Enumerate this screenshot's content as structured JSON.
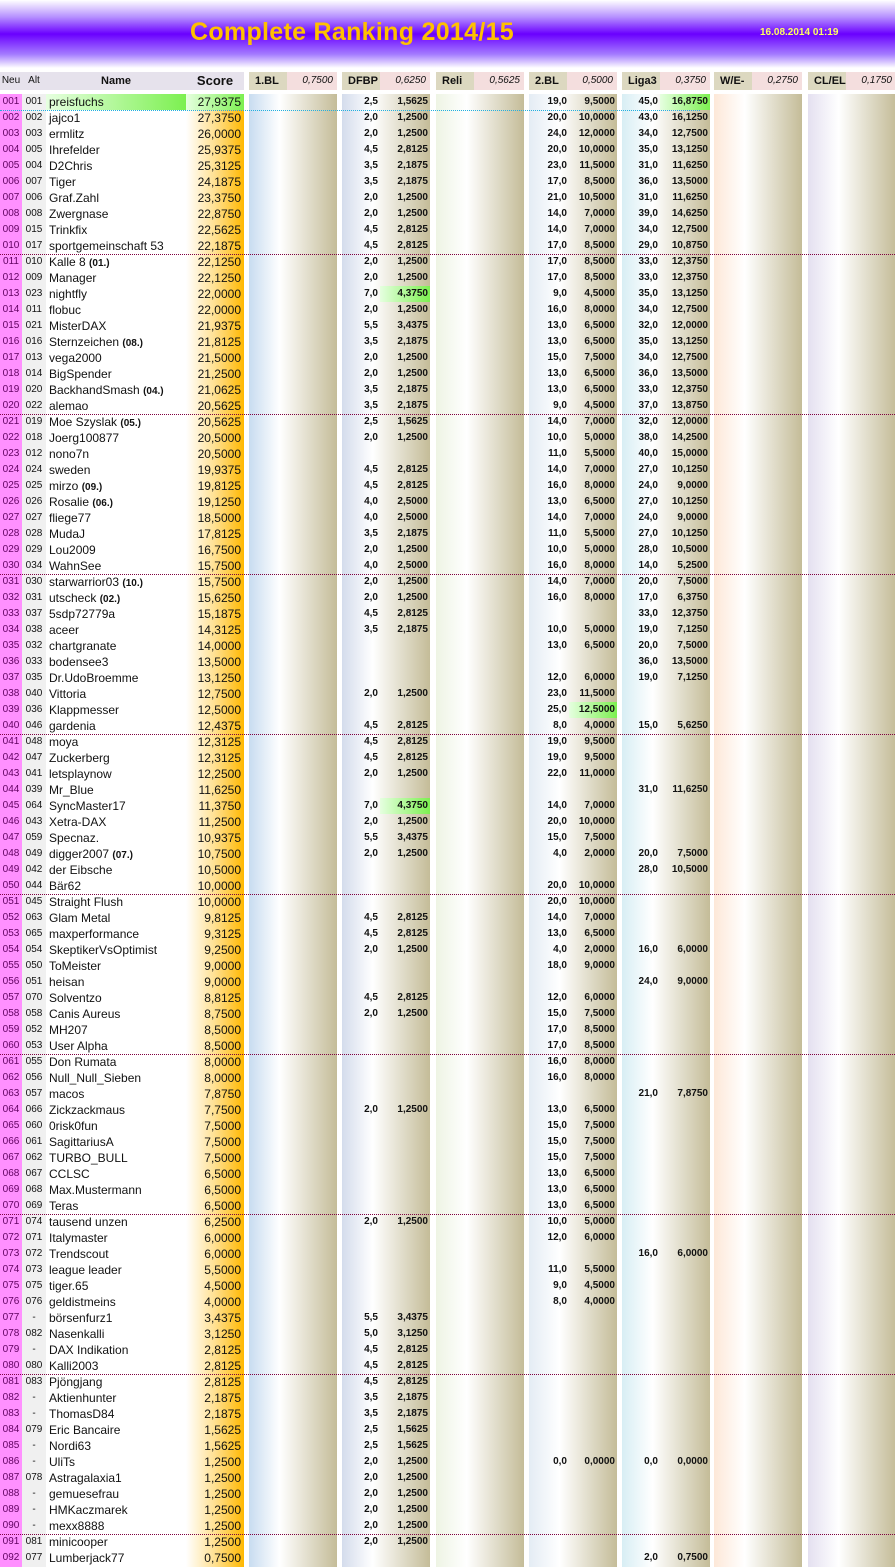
{
  "header": {
    "title": "Complete Ranking 2014/15",
    "date": "16.08.2014 01:19"
  },
  "columns": {
    "neu": "Neu",
    "alt": "Alt",
    "name": "Name",
    "score": "Score",
    "groups": [
      {
        "label": "1.BL",
        "factor": "0,7500"
      },
      {
        "label": "DFBP",
        "factor": "0,6250"
      },
      {
        "label": "Reli",
        "factor": "0,5625"
      },
      {
        "label": "2.BL",
        "factor": "0,5000"
      },
      {
        "label": "Liga3",
        "factor": "0,3750"
      },
      {
        "label": "W/E-Q",
        "factor": "0,2750"
      },
      {
        "label": "CL/EL",
        "factor": "0,1750"
      }
    ]
  },
  "colors": {
    "highlight": "#7cf050",
    "score": "#ffc000",
    "neu": "#ff88ff",
    "banner": "#6a00ff",
    "title": "#ffc000"
  },
  "row_fields": [
    "neu",
    "alt",
    "name",
    "tag",
    "score",
    "dfbp_pts",
    "dfbp_val",
    "bl2_pts",
    "bl2_val",
    "liga3_pts",
    "liga3_val",
    "extra"
  ],
  "rows": [
    [
      "001",
      "001",
      "preisfuchs",
      "",
      "27,9375",
      "2,5",
      "1,5625",
      "19,0",
      "9,5000",
      "45,0",
      "16,8750",
      {
        "hl": [
          "name",
          "score",
          "liga3_val"
        ]
      }
    ],
    [
      "002",
      "002",
      "jajco1",
      "",
      "27,3750",
      "2,0",
      "1,2500",
      "20,0",
      "10,0000",
      "43,0",
      "16,1250"
    ],
    [
      "003",
      "003",
      "ermlitz",
      "",
      "26,0000",
      "2,0",
      "1,2500",
      "24,0",
      "12,0000",
      "34,0",
      "12,7500"
    ],
    [
      "004",
      "005",
      "Ihrefelder",
      "",
      "25,9375",
      "4,5",
      "2,8125",
      "20,0",
      "10,0000",
      "35,0",
      "13,1250"
    ],
    [
      "005",
      "004",
      "D2Chris",
      "",
      "25,3125",
      "3,5",
      "2,1875",
      "23,0",
      "11,5000",
      "31,0",
      "11,6250"
    ],
    [
      "006",
      "007",
      "Tiger",
      "",
      "24,1875",
      "3,5",
      "2,1875",
      "17,0",
      "8,5000",
      "36,0",
      "13,5000"
    ],
    [
      "007",
      "006",
      "Graf.Zahl",
      "",
      "23,3750",
      "2,0",
      "1,2500",
      "21,0",
      "10,5000",
      "31,0",
      "11,6250"
    ],
    [
      "008",
      "008",
      "Zwergnase",
      "",
      "22,8750",
      "2,0",
      "1,2500",
      "14,0",
      "7,0000",
      "39,0",
      "14,6250"
    ],
    [
      "009",
      "015",
      "Trinkfix",
      "",
      "22,5625",
      "4,5",
      "2,8125",
      "14,0",
      "7,0000",
      "34,0",
      "12,7500"
    ],
    [
      "010",
      "017",
      "sportgemeinschaft 53",
      "",
      "22,1875",
      "4,5",
      "2,8125",
      "17,0",
      "8,5000",
      "29,0",
      "10,8750"
    ],
    [
      "011",
      "010",
      "Kalle 8",
      "(01.)",
      "22,1250",
      "2,0",
      "1,2500",
      "17,0",
      "8,5000",
      "33,0",
      "12,3750",
      {
        "star": "green-star-icon"
      }
    ],
    [
      "012",
      "009",
      "Manager",
      "",
      "22,1250",
      "2,0",
      "1,2500",
      "17,0",
      "8,5000",
      "33,0",
      "12,3750"
    ],
    [
      "013",
      "023",
      "nightfly",
      "",
      "22,0000",
      "7,0",
      "4,3750",
      "9,0",
      "4,5000",
      "35,0",
      "13,1250",
      {
        "hl": [
          "dfbp_val"
        ]
      }
    ],
    [
      "014",
      "011",
      "flobuc",
      "",
      "22,0000",
      "2,0",
      "1,2500",
      "16,0",
      "8,0000",
      "34,0",
      "12,7500"
    ],
    [
      "015",
      "021",
      "MisterDAX",
      "",
      "21,9375",
      "5,5",
      "3,4375",
      "13,0",
      "6,5000",
      "32,0",
      "12,0000"
    ],
    [
      "016",
      "016",
      "Sternzeichen",
      "(08.)",
      "21,8125",
      "3,5",
      "2,1875",
      "13,0",
      "6,5000",
      "35,0",
      "13,1250"
    ],
    [
      "017",
      "013",
      "vega2000",
      "",
      "21,5000",
      "2,0",
      "1,2500",
      "15,0",
      "7,5000",
      "34,0",
      "12,7500"
    ],
    [
      "018",
      "014",
      "BigSpender",
      "",
      "21,2500",
      "2,0",
      "1,2500",
      "13,0",
      "6,5000",
      "36,0",
      "13,5000"
    ],
    [
      "019",
      "020",
      "BackhandSmash",
      "(04.)",
      "21,0625",
      "3,5",
      "2,1875",
      "13,0",
      "6,5000",
      "33,0",
      "12,3750"
    ],
    [
      "020",
      "022",
      "alemao",
      "",
      "20,5625",
      "3,5",
      "2,1875",
      "9,0",
      "4,5000",
      "37,0",
      "13,8750"
    ],
    [
      "021",
      "019",
      "Moe Szyslak",
      "(05.)",
      "20,5625",
      "2,5",
      "1,5625",
      "14,0",
      "7,0000",
      "32,0",
      "12,0000"
    ],
    [
      "022",
      "018",
      "Joerg100877",
      "",
      "20,5000",
      "2,0",
      "1,2500",
      "10,0",
      "5,0000",
      "38,0",
      "14,2500"
    ],
    [
      "023",
      "012",
      "nono7n",
      "",
      "20,5000",
      "",
      "",
      "11,0",
      "5,5000",
      "40,0",
      "15,0000"
    ],
    [
      "024",
      "024",
      "sweden",
      "",
      "19,9375",
      "4,5",
      "2,8125",
      "14,0",
      "7,0000",
      "27,0",
      "10,1250"
    ],
    [
      "025",
      "025",
      "mirzo",
      "(09.)",
      "19,8125",
      "4,5",
      "2,8125",
      "16,0",
      "8,0000",
      "24,0",
      "9,0000"
    ],
    [
      "026",
      "026",
      "Rosalie",
      "(06.)",
      "19,1250",
      "4,0",
      "2,5000",
      "13,0",
      "6,5000",
      "27,0",
      "10,1250"
    ],
    [
      "027",
      "027",
      "fliege77",
      "",
      "18,5000",
      "4,0",
      "2,5000",
      "14,0",
      "7,0000",
      "24,0",
      "9,0000"
    ],
    [
      "028",
      "028",
      "MudaJ",
      "",
      "17,8125",
      "3,5",
      "2,1875",
      "11,0",
      "5,5000",
      "27,0",
      "10,1250"
    ],
    [
      "029",
      "029",
      "Lou2009",
      "",
      "16,7500",
      "2,0",
      "1,2500",
      "10,0",
      "5,0000",
      "28,0",
      "10,5000"
    ],
    [
      "030",
      "034",
      "WahnSee",
      "",
      "15,7500",
      "4,0",
      "2,5000",
      "16,0",
      "8,0000",
      "14,0",
      "5,2500"
    ],
    [
      "031",
      "030",
      "starwarrior03",
      "(10.)",
      "15,7500",
      "2,0",
      "1,2500",
      "14,0",
      "7,0000",
      "20,0",
      "7,5000"
    ],
    [
      "032",
      "031",
      "utscheck",
      "(02.)",
      "15,6250",
      "2,0",
      "1,2500",
      "16,0",
      "8,0000",
      "17,0",
      "6,3750",
      {
        "star": "black-star-icon"
      }
    ],
    [
      "033",
      "037",
      "5sdp72779a",
      "",
      "15,1875",
      "4,5",
      "2,8125",
      "",
      "",
      "33,0",
      "12,3750"
    ],
    [
      "034",
      "038",
      "aceer",
      "",
      "14,3125",
      "3,5",
      "2,1875",
      "10,0",
      "5,0000",
      "19,0",
      "7,1250"
    ],
    [
      "035",
      "032",
      "chartgranate",
      "",
      "14,0000",
      "",
      "",
      "13,0",
      "6,5000",
      "20,0",
      "7,5000"
    ],
    [
      "036",
      "033",
      "bodensee3",
      "",
      "13,5000",
      "",
      "",
      "",
      "",
      "36,0",
      "13,5000"
    ],
    [
      "037",
      "035",
      "Dr.UdoBroemme",
      "",
      "13,1250",
      "",
      "",
      "12,0",
      "6,0000",
      "19,0",
      "7,1250"
    ],
    [
      "038",
      "040",
      "Vittoria",
      "",
      "12,7500",
      "2,0",
      "1,2500",
      "23,0",
      "11,5000",
      "",
      ""
    ],
    [
      "039",
      "036",
      "Klappmesser",
      "",
      "12,5000",
      "",
      "",
      "25,0",
      "12,5000",
      "",
      "",
      {
        "hl": [
          "bl2_val"
        ]
      }
    ],
    [
      "040",
      "046",
      "gardenia",
      "",
      "12,4375",
      "4,5",
      "2,8125",
      "8,0",
      "4,0000",
      "15,0",
      "5,6250"
    ],
    [
      "041",
      "048",
      "moya",
      "",
      "12,3125",
      "4,5",
      "2,8125",
      "19,0",
      "9,5000",
      "",
      ""
    ],
    [
      "042",
      "047",
      "Zuckerberg",
      "",
      "12,3125",
      "4,5",
      "2,8125",
      "19,0",
      "9,5000",
      "",
      ""
    ],
    [
      "043",
      "041",
      "letsplaynow",
      "",
      "12,2500",
      "2,0",
      "1,2500",
      "22,0",
      "11,0000",
      "",
      ""
    ],
    [
      "044",
      "039",
      "Mr_Blue",
      "",
      "11,6250",
      "",
      "",
      "",
      "",
      "31,0",
      "11,6250"
    ],
    [
      "045",
      "064",
      "SyncMaster17",
      "",
      "11,3750",
      "7,0",
      "4,3750",
      "14,0",
      "7,0000",
      "",
      "",
      {
        "hl": [
          "dfbp_val"
        ]
      }
    ],
    [
      "046",
      "043",
      "Xetra-DAX",
      "",
      "11,2500",
      "2,0",
      "1,2500",
      "20,0",
      "10,0000",
      "",
      ""
    ],
    [
      "047",
      "059",
      "Specnaz.",
      "",
      "10,9375",
      "5,5",
      "3,4375",
      "15,0",
      "7,5000",
      "",
      ""
    ],
    [
      "048",
      "049",
      "digger2007",
      "(07.)",
      "10,7500",
      "2,0",
      "1,2500",
      "4,0",
      "2,0000",
      "20,0",
      "7,5000"
    ],
    [
      "049",
      "042",
      "der Eibsche",
      "",
      "10,5000",
      "",
      "",
      "",
      "",
      "28,0",
      "10,5000"
    ],
    [
      "050",
      "044",
      "Bär62",
      "",
      "10,0000",
      "",
      "",
      "20,0",
      "10,0000",
      "",
      ""
    ],
    [
      "051",
      "045",
      "Straight Flush",
      "",
      "10,0000",
      "",
      "",
      "20,0",
      "10,0000",
      "",
      ""
    ],
    [
      "052",
      "063",
      "Glam Metal",
      "",
      "9,8125",
      "4,5",
      "2,8125",
      "14,0",
      "7,0000",
      "",
      ""
    ],
    [
      "053",
      "065",
      "maxperformance",
      "",
      "9,3125",
      "4,5",
      "2,8125",
      "13,0",
      "6,5000",
      "",
      ""
    ],
    [
      "054",
      "054",
      "SkeptikerVsOptimist",
      "",
      "9,2500",
      "2,0",
      "1,2500",
      "4,0",
      "2,0000",
      "16,0",
      "6,0000"
    ],
    [
      "055",
      "050",
      "ToMeister",
      "",
      "9,0000",
      "",
      "",
      "18,0",
      "9,0000",
      "",
      ""
    ],
    [
      "056",
      "051",
      "heisan",
      "",
      "9,0000",
      "",
      "",
      "",
      "",
      "24,0",
      "9,0000"
    ],
    [
      "057",
      "070",
      "Solventzo",
      "",
      "8,8125",
      "4,5",
      "2,8125",
      "12,0",
      "6,0000",
      "",
      ""
    ],
    [
      "058",
      "058",
      "Canis Aureus",
      "",
      "8,7500",
      "2,0",
      "1,2500",
      "15,0",
      "7,5000",
      "",
      ""
    ],
    [
      "059",
      "052",
      "MH207",
      "",
      "8,5000",
      "",
      "",
      "17,0",
      "8,5000",
      "",
      ""
    ],
    [
      "060",
      "053",
      "User Alpha",
      "",
      "8,5000",
      "",
      "",
      "17,0",
      "8,5000",
      "",
      ""
    ],
    [
      "061",
      "055",
      "Don Rumata",
      "",
      "8,0000",
      "",
      "",
      "16,0",
      "8,0000",
      "",
      ""
    ],
    [
      "062",
      "056",
      "Null_Null_Sieben",
      "",
      "8,0000",
      "",
      "",
      "16,0",
      "8,0000",
      "",
      ""
    ],
    [
      "063",
      "057",
      "macos",
      "",
      "7,8750",
      "",
      "",
      "",
      "",
      "21,0",
      "7,8750"
    ],
    [
      "064",
      "066",
      "Zickzackmaus",
      "",
      "7,7500",
      "2,0",
      "1,2500",
      "13,0",
      "6,5000",
      "",
      ""
    ],
    [
      "065",
      "060",
      "0risk0fun",
      "",
      "7,5000",
      "",
      "",
      "15,0",
      "7,5000",
      "",
      ""
    ],
    [
      "066",
      "061",
      "SagittariusA",
      "",
      "7,5000",
      "",
      "",
      "15,0",
      "7,5000",
      "",
      ""
    ],
    [
      "067",
      "062",
      "TURBO_BULL",
      "",
      "7,5000",
      "",
      "",
      "15,0",
      "7,5000",
      "",
      ""
    ],
    [
      "068",
      "067",
      "CCLSC",
      "",
      "6,5000",
      "",
      "",
      "13,0",
      "6,5000",
      "",
      ""
    ],
    [
      "069",
      "068",
      "Max.Mustermann",
      "",
      "6,5000",
      "",
      "",
      "13,0",
      "6,5000",
      "",
      ""
    ],
    [
      "070",
      "069",
      "Teras",
      "",
      "6,5000",
      "",
      "",
      "13,0",
      "6,5000",
      "",
      ""
    ],
    [
      "071",
      "074",
      "tausend unzen",
      "",
      "6,2500",
      "2,0",
      "1,2500",
      "10,0",
      "5,0000",
      "",
      ""
    ],
    [
      "072",
      "071",
      "Italymaster",
      "",
      "6,0000",
      "",
      "",
      "12,0",
      "6,0000",
      "",
      ""
    ],
    [
      "073",
      "072",
      "Trendscout",
      "",
      "6,0000",
      "",
      "",
      "",
      "",
      "16,0",
      "6,0000"
    ],
    [
      "074",
      "073",
      "league leader",
      "",
      "5,5000",
      "",
      "",
      "11,0",
      "5,5000",
      "",
      ""
    ],
    [
      "075",
      "075",
      "tiger.65",
      "",
      "4,5000",
      "",
      "",
      "9,0",
      "4,5000",
      "",
      ""
    ],
    [
      "076",
      "076",
      "geldistmeins",
      "",
      "4,0000",
      "",
      "",
      "8,0",
      "4,0000",
      "",
      ""
    ],
    [
      "077",
      "-",
      "börsenfurz1",
      "",
      "3,4375",
      "5,5",
      "3,4375",
      "",
      "",
      "",
      ""
    ],
    [
      "078",
      "082",
      "Nasenkalli",
      "",
      "3,1250",
      "5,0",
      "3,1250",
      "",
      "",
      "",
      ""
    ],
    [
      "079",
      "-",
      "DAX Indikation",
      "",
      "2,8125",
      "4,5",
      "2,8125",
      "",
      "",
      "",
      ""
    ],
    [
      "080",
      "080",
      "Kalli2003",
      "",
      "2,8125",
      "4,5",
      "2,8125",
      "",
      "",
      "",
      ""
    ],
    [
      "081",
      "083",
      "Pjöngjang",
      "",
      "2,8125",
      "4,5",
      "2,8125",
      "",
      "",
      "",
      ""
    ],
    [
      "082",
      "-",
      "Aktienhunter",
      "",
      "2,1875",
      "3,5",
      "2,1875",
      "",
      "",
      "",
      ""
    ],
    [
      "083",
      "-",
      "ThomasD84",
      "",
      "2,1875",
      "3,5",
      "2,1875",
      "",
      "",
      "",
      ""
    ],
    [
      "084",
      "079",
      "Eric Bancaire",
      "",
      "1,5625",
      "2,5",
      "1,5625",
      "",
      "",
      "",
      ""
    ],
    [
      "085",
      "-",
      "Nordi63",
      "",
      "1,5625",
      "2,5",
      "1,5625",
      "",
      "",
      "",
      ""
    ],
    [
      "086",
      "-",
      "UliTs",
      "",
      "1,2500",
      "2,0",
      "1,2500",
      "0,0",
      "0,0000",
      "0,0",
      "0,0000"
    ],
    [
      "087",
      "078",
      "Astragalaxia1",
      "",
      "1,2500",
      "2,0",
      "1,2500",
      "",
      "",
      "",
      ""
    ],
    [
      "088",
      "-",
      "gemuesefrau",
      "",
      "1,2500",
      "2,0",
      "1,2500",
      "",
      "",
      "",
      ""
    ],
    [
      "089",
      "-",
      "HMKaczmarek",
      "",
      "1,2500",
      "2,0",
      "1,2500",
      "",
      "",
      "",
      ""
    ],
    [
      "090",
      "-",
      "mexx8888",
      "",
      "1,2500",
      "2,0",
      "1,2500",
      "",
      "",
      "",
      ""
    ],
    [
      "091",
      "081",
      "minicooper",
      "",
      "1,2500",
      "2,0",
      "1,2500",
      "",
      "",
      "",
      ""
    ],
    [
      "092",
      "077",
      "Lumberjack77",
      "",
      "0,7500",
      "",
      "",
      "",
      "",
      "2,0",
      "0,7500"
    ]
  ]
}
